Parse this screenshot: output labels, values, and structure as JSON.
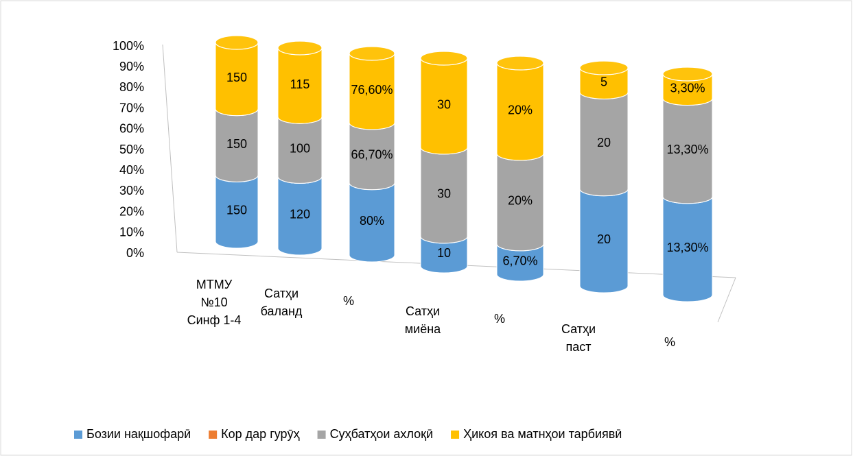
{
  "chart_data": {
    "type": "bar",
    "stacking": "percent",
    "categories": [
      "МТМУ\n№10\nСинф 1-4",
      "Сатҳи\nбаланд",
      "%",
      "Сатҳи\nмиёна",
      "%",
      "Сатҳи\nпаст",
      "%"
    ],
    "series": [
      {
        "name": "Бозии нақшофарӣ",
        "color": "#5b9bd5",
        "values": [
          150,
          120,
          80,
          10,
          6.7,
          20,
          13.3
        ],
        "value_labels": [
          "150",
          "120",
          "80%",
          "10",
          "6,70%",
          "20",
          "13,30%"
        ]
      },
      {
        "name": "Кор дар гурӯҳ",
        "color": "#ed7d31",
        "values": [
          null,
          null,
          null,
          null,
          null,
          null,
          null
        ]
      },
      {
        "name": "Суҳбатҳои ахлоқӣ",
        "color": "#a5a5a5",
        "values": [
          150,
          100,
          66.7,
          30,
          20,
          20,
          13.3
        ],
        "value_labels": [
          "150",
          "100",
          "66,70%",
          "30",
          "20%",
          "20",
          "13,30%"
        ]
      },
      {
        "name": "Ҳикоя ва матнҳои тарбиявӣ",
        "color": "#ffc000",
        "values": [
          150,
          115,
          76.6,
          30,
          20,
          5,
          3.3
        ],
        "value_labels": [
          "150",
          "115",
          "76,60%",
          "30",
          "20%",
          "5",
          "3,30%"
        ]
      }
    ],
    "ylim": [
      0,
      100
    ],
    "yticks": [
      {
        "value": 0,
        "label": "0%"
      },
      {
        "value": 10,
        "label": "10%"
      },
      {
        "value": 20,
        "label": "20%"
      },
      {
        "value": 30,
        "label": "30%"
      },
      {
        "value": 40,
        "label": "40%"
      },
      {
        "value": 50,
        "label": "50%"
      },
      {
        "value": 60,
        "label": "60%"
      },
      {
        "value": 70,
        "label": "70%"
      },
      {
        "value": 80,
        "label": "80%"
      },
      {
        "value": 90,
        "label": "90%"
      },
      {
        "value": 100,
        "label": "100%"
      }
    ],
    "legend": "bottom"
  }
}
